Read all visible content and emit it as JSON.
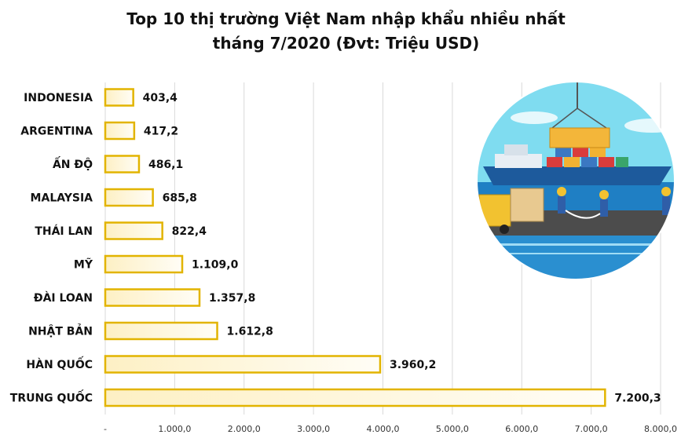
{
  "chart_data": {
    "type": "bar",
    "orientation": "horizontal",
    "title": "Top 10 thị trường Việt Nam nhập khẩu nhiều nhất",
    "subtitle": "tháng 7/2020 (Đvt: Triệu USD)",
    "categories": [
      "INDONESIA",
      "ARGENTINA",
      "ẤN ĐỘ",
      "MALAYSIA",
      "THÁI LAN",
      "MỸ",
      "ĐÀI LOAN",
      "NHẬT BẢN",
      "HÀN QUỐC",
      "TRUNG QUỐC"
    ],
    "values": [
      403.4,
      417.2,
      486.1,
      685.8,
      822.4,
      1109.0,
      1357.8,
      1612.8,
      3960.2,
      7200.3
    ],
    "value_labels": [
      "403,4",
      "417,2",
      "486,1",
      "685,8",
      "822,4",
      "1.109,0",
      "1.357,8",
      "1.612,8",
      "3.960,2",
      "7.200,3"
    ],
    "xlim": [
      0,
      8000
    ],
    "xticks": [
      0,
      1000,
      2000,
      3000,
      4000,
      5000,
      6000,
      7000,
      8000
    ],
    "xtick_labels": [
      "-",
      "1.000,0",
      "2.000,0",
      "3.000,0",
      "4.000,0",
      "5.000,0",
      "6.000,0",
      "7.000,0",
      "8.000,0"
    ],
    "grid": true,
    "legend": "none",
    "colors": {
      "bar_fill_start": "#fdf3cf",
      "bar_fill_end": "#ffffff",
      "bar_stroke": "#e2b400",
      "grid": "#d9d9d9",
      "text": "#111111"
    },
    "illustration": "port-ship-cargo-workers-illustration"
  }
}
